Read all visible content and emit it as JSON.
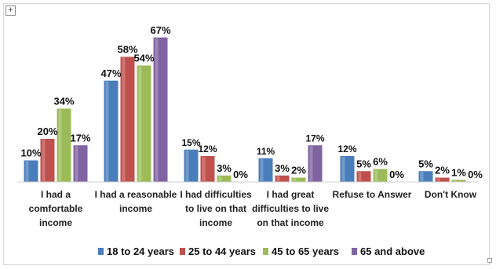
{
  "chart_data": {
    "type": "bar",
    "title": "",
    "xlabel": "",
    "ylabel": "",
    "ylim": [
      0,
      70
    ],
    "grid": false,
    "legend": "bottom",
    "categories": [
      [
        "I had a",
        "comfortable",
        "income"
      ],
      [
        "I had a reasonable",
        "income"
      ],
      [
        "I had difficulties",
        "to live on that",
        "income"
      ],
      [
        "I had great",
        "difficulties to live",
        "on that income"
      ],
      [
        "Refuse to Answer"
      ],
      [
        "Don't Know"
      ]
    ],
    "series": [
      {
        "name": "18 to 24 years",
        "color": "#4a7ebb",
        "values": [
          10,
          47,
          15,
          11,
          12,
          5
        ]
      },
      {
        "name": "25 to 44 years",
        "color": "#c0504d",
        "values": [
          20,
          58,
          12,
          3,
          5,
          2
        ]
      },
      {
        "name": "45 to 65 years",
        "color": "#9bbb59",
        "values": [
          34,
          54,
          3,
          2,
          6,
          1
        ]
      },
      {
        "name": "65 and above",
        "color": "#8064a2",
        "values": [
          17,
          67,
          0,
          17,
          0,
          0
        ]
      }
    ],
    "data_labels": [
      [
        "10%",
        "47%",
        "15%",
        "11%",
        "12%",
        "5%"
      ],
      [
        "20%",
        "58%",
        "12%",
        "3%",
        "5%",
        "2%"
      ],
      [
        "34%",
        "54%",
        "3%",
        "2%",
        "6%",
        "1%"
      ],
      [
        "17%",
        "67%",
        "0%",
        "17%",
        "0%",
        "0%"
      ]
    ]
  },
  "ui": {
    "move_handle_icon": "move-icon",
    "move_handle_glyph": "+"
  }
}
